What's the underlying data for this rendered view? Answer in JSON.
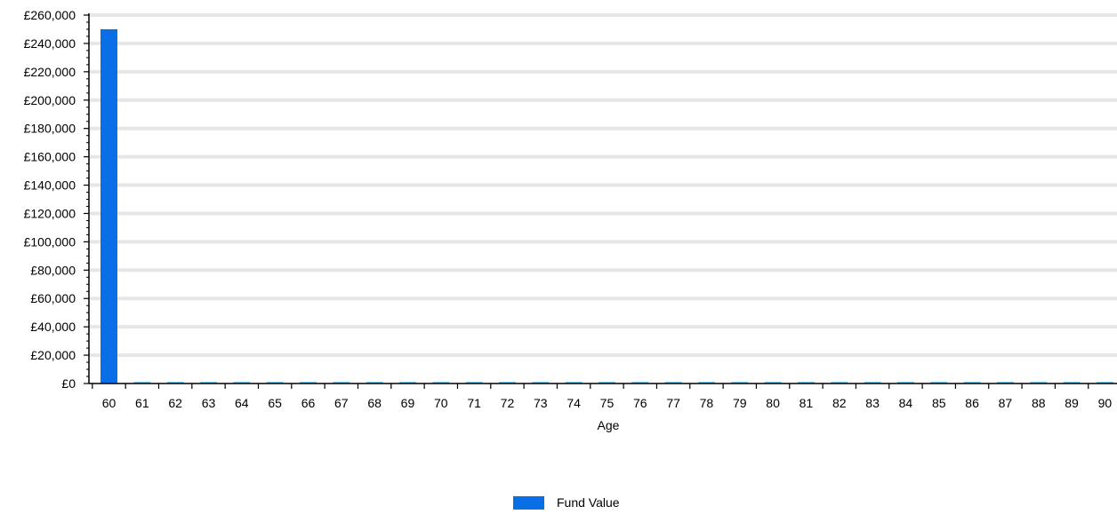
{
  "chart_data": {
    "type": "bar",
    "title": "",
    "xlabel": "Age",
    "ylabel": "",
    "categories": [
      "60",
      "61",
      "62",
      "63",
      "64",
      "65",
      "66",
      "67",
      "68",
      "69",
      "70",
      "71",
      "72",
      "73",
      "74",
      "75",
      "76",
      "77",
      "78",
      "79",
      "80",
      "81",
      "82",
      "83",
      "84",
      "85",
      "86",
      "87",
      "88",
      "89",
      "90"
    ],
    "series": [
      {
        "name": "Fund Value",
        "color": "#0a6ee6",
        "values": [
          250000,
          0,
          0,
          0,
          0,
          0,
          0,
          0,
          0,
          0,
          0,
          0,
          0,
          0,
          0,
          0,
          0,
          0,
          0,
          0,
          0,
          0,
          0,
          0,
          0,
          0,
          0,
          0,
          0,
          0,
          0
        ]
      }
    ],
    "ylim": [
      0,
      260000
    ],
    "yticks": [
      0,
      20000,
      40000,
      60000,
      80000,
      100000,
      120000,
      140000,
      160000,
      180000,
      200000,
      220000,
      240000,
      260000
    ],
    "ytick_labels": [
      "£0",
      "£20,000",
      "£40,000",
      "£60,000",
      "£80,000",
      "£100,000",
      "£120,000",
      "£140,000",
      "£160,000",
      "£180,000",
      "£200,000",
      "£220,000",
      "£240,000",
      "£260,000"
    ],
    "grid": true,
    "grid_color": "#e6e6e6",
    "zero_bar_color": "#7fc4ec",
    "legend_position": "bottom-center"
  }
}
